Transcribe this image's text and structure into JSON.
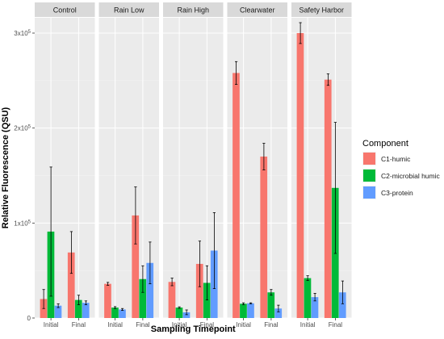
{
  "chart_data": {
    "type": "bar",
    "facets": [
      "Control",
      "Rain Low",
      "Rain High",
      "Clearwater",
      "Safety Harbor"
    ],
    "categories": [
      "Initial",
      "Final"
    ],
    "xlabel": "Sampling Timepoint",
    "ylabel": "Relative Fluorescence (QSU)",
    "ylim": [
      0,
      320000
    ],
    "yticks": [
      {
        "value": 0,
        "label": "0"
      },
      {
        "value": 100000,
        "label": "1x10⁵"
      },
      {
        "value": 200000,
        "label": "2x10⁵"
      },
      {
        "value": 300000,
        "label": "3x10⁵"
      }
    ],
    "grid": true,
    "legend": {
      "title": "Component",
      "position": "right",
      "entries": [
        "C1-humic",
        "C2-microbial humic",
        "C3-protein"
      ]
    },
    "series": [
      {
        "name": "C1-humic",
        "color": "#F8766D",
        "values": {
          "Control": [
            20000,
            69000
          ],
          "Rain Low": [
            36000,
            108000
          ],
          "Rain High": [
            38000,
            57000
          ],
          "Clearwater": [
            258000,
            170000
          ],
          "Safety Harbor": [
            300000,
            251000
          ]
        },
        "errors": {
          "Control": [
            10000,
            22000
          ],
          "Rain Low": [
            1500,
            30000
          ],
          "Rain High": [
            4000,
            24000
          ],
          "Clearwater": [
            12000,
            14000
          ],
          "Safety Harbor": [
            11000,
            6000
          ]
        }
      },
      {
        "name": "C2-microbial humic",
        "color": "#00BA38",
        "values": {
          "Control": [
            91000,
            19000
          ],
          "Rain Low": [
            11000,
            41000
          ],
          "Rain High": [
            11000,
            37000
          ],
          "Clearwater": [
            15000,
            27000
          ],
          "Safety Harbor": [
            42000,
            137000
          ]
        },
        "errors": {
          "Control": [
            68000,
            5000
          ],
          "Rain Low": [
            1000,
            14000
          ],
          "Rain High": [
            800,
            18000
          ],
          "Clearwater": [
            1000,
            3000
          ],
          "Safety Harbor": [
            2500,
            69000
          ]
        }
      },
      {
        "name": "C3-protein",
        "color": "#619CFF",
        "values": {
          "Control": [
            13000,
            16000
          ],
          "Rain Low": [
            9000,
            58000
          ],
          "Rain High": [
            6000,
            71000
          ],
          "Clearwater": [
            15500,
            10000
          ],
          "Safety Harbor": [
            22000,
            27000
          ]
        },
        "errors": {
          "Control": [
            2000,
            2000
          ],
          "Rain Low": [
            1000,
            22000
          ],
          "Rain High": [
            2500,
            40000
          ],
          "Clearwater": [
            500,
            3500
          ],
          "Safety Harbor": [
            4000,
            12000
          ]
        }
      }
    ]
  }
}
